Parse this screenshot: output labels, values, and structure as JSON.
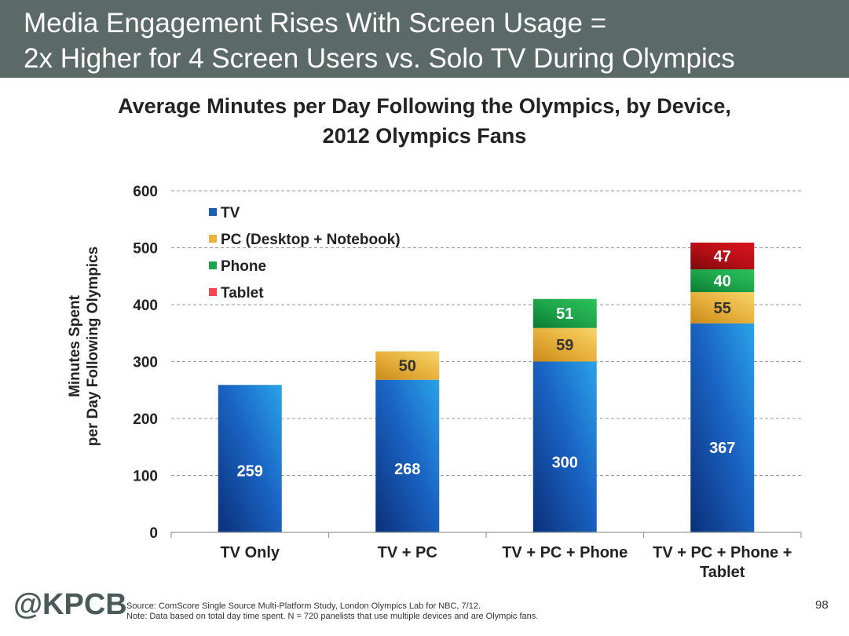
{
  "header": {
    "title_line1": "Media Engagement Rises With Screen Usage =",
    "title_line2": "2x Higher for 4 Screen Users vs. Solo TV During Olympics"
  },
  "chart_data": {
    "type": "bar",
    "stacked": true,
    "title_line1": "Average Minutes per Day Following the Olympics, by Device,",
    "title_line2": "2012 Olympics Fans",
    "ylabel_line1": "Minutes Spent",
    "ylabel_line2": "per Day Following Olympics",
    "ylim": [
      0,
      600
    ],
    "yticks": [
      0,
      100,
      200,
      300,
      400,
      500,
      600
    ],
    "grid": true,
    "legend_position": "top-left",
    "categories": [
      [
        "TV Only"
      ],
      [
        "TV + PC"
      ],
      [
        "TV + PC + Phone"
      ],
      [
        "TV + PC + Phone +",
        "Tablet"
      ]
    ],
    "series": [
      {
        "name": "TV",
        "color": "#1a5fb4",
        "values": [
          259,
          268,
          300,
          367
        ]
      },
      {
        "name": "PC (Desktop + Notebook)",
        "color": "#e8b23c",
        "values": [
          null,
          50,
          59,
          55
        ]
      },
      {
        "name": "Phone",
        "color": "#1ea54a",
        "values": [
          null,
          null,
          51,
          40
        ]
      },
      {
        "name": "Tablet",
        "color": "#c3101a",
        "legend_color": "#f0474f",
        "values": [
          null,
          null,
          null,
          47
        ]
      }
    ]
  },
  "footer": {
    "logo": "@KPCB",
    "source": "Source: ComScore Single Source Multi-Platform Study, London Olympics Lab for NBC, 7/12.",
    "note": "Note: Data based on total day time spent. N = 720 panelists that use multiple devices and are Olympic fans.",
    "page_number": "98"
  }
}
